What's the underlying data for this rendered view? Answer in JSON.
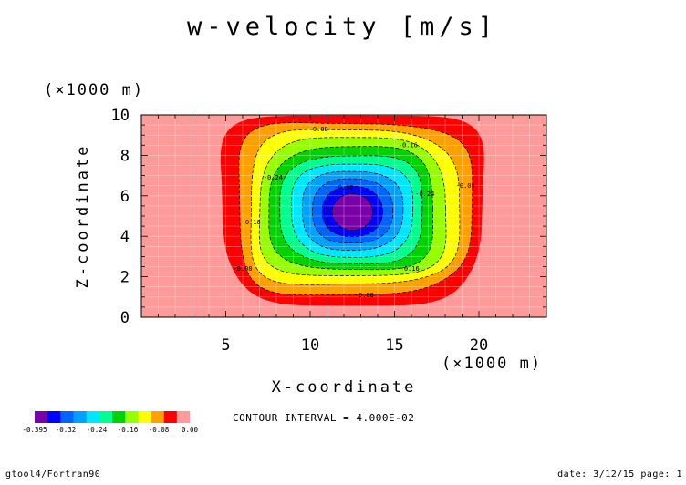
{
  "chart_data": {
    "type": "heatmap",
    "title": "w-velocity [m/s]",
    "xlabel": "X-coordinate",
    "ylabel": "Z-coordinate",
    "x_unit": "(×1000 m)",
    "y_unit": "(×1000 m)",
    "xlim": [
      0,
      24
    ],
    "ylim": [
      0,
      10
    ],
    "x_ticks": [
      5,
      10,
      15,
      20
    ],
    "y_ticks": [
      0,
      2,
      4,
      6,
      8,
      10
    ],
    "contour_levels": [
      -0.32,
      -0.28,
      -0.24,
      -0.2,
      -0.16,
      -0.12,
      -0.08,
      -0.04
    ],
    "contour_labels": [
      {
        "text": "-0.08",
        "x": 10.5,
        "z": 9.2
      },
      {
        "text": "-0.16",
        "x": 15.8,
        "z": 8.4
      },
      {
        "text": "-0.24",
        "x": 7.8,
        "z": 6.8
      },
      {
        "text": "-0.32",
        "x": 12.0,
        "z": 6.3
      },
      {
        "text": "-0.24",
        "x": 16.8,
        "z": 6.0
      },
      {
        "text": "-0.08",
        "x": 19.2,
        "z": 6.4
      },
      {
        "text": "-0.16",
        "x": 6.5,
        "z": 4.6
      },
      {
        "text": "-0.08",
        "x": 6.0,
        "z": 2.3
      },
      {
        "text": "-0.16",
        "x": 15.9,
        "z": 2.3
      },
      {
        "text": "-0.08",
        "x": 13.2,
        "z": 1.0
      }
    ],
    "field": {
      "center_x": 12.5,
      "center_z": 5.2,
      "min_value": -0.395,
      "description_levels": "negative downdraft cell, near 0.00 outside"
    },
    "colorbar": {
      "boundaries": [
        -0.395,
        -0.32,
        -0.24,
        -0.16,
        -0.08,
        0.0
      ],
      "labels": [
        "-0.395",
        "-0.32",
        "-0.24",
        "-0.16",
        "-0.08",
        "0.00"
      ],
      "colors": [
        "#7a00a8",
        "#0000ff",
        "#0064ff",
        "#00a0ff",
        "#00e6ff",
        "#00ff8c",
        "#00d200",
        "#96ff00",
        "#ffff00",
        "#ffa000",
        "#ff0000",
        "#ff9a9a"
      ]
    },
    "contour_interval_text": "CONTOUR INTERVAL = 4.000E-02",
    "grid": true
  },
  "footer": {
    "left": "gtool4/Fortran90",
    "right": "date: 3/12/15 page: 1"
  }
}
